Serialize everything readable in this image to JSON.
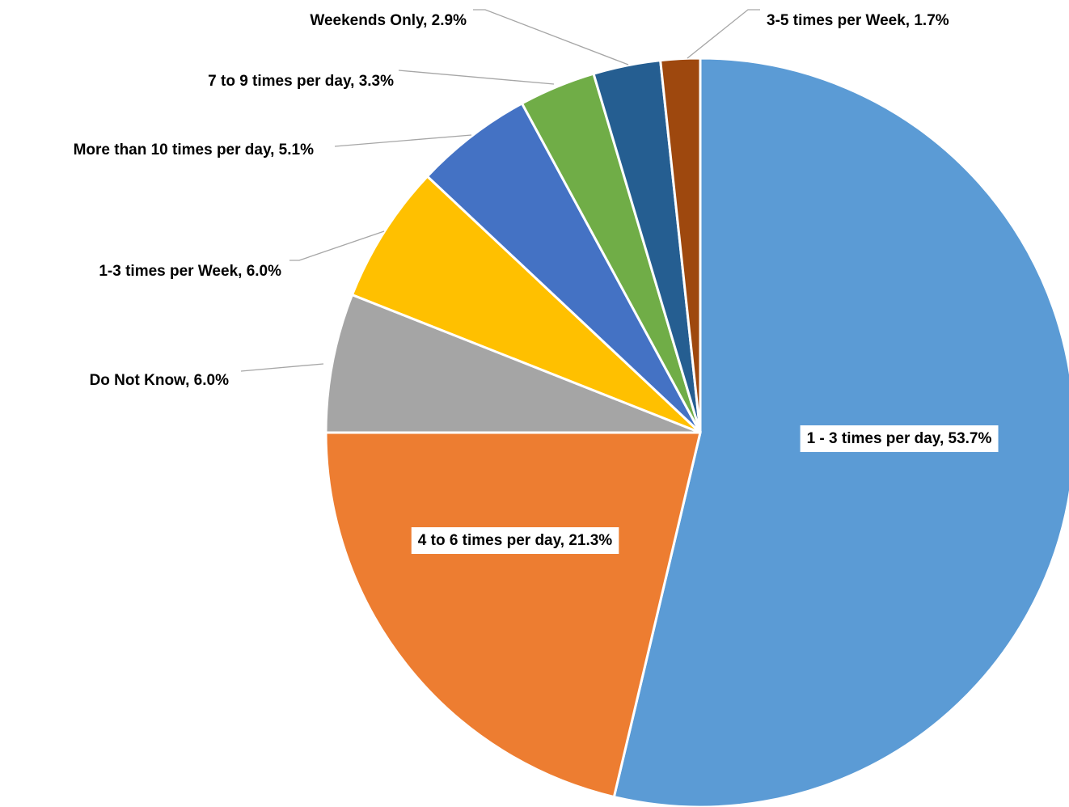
{
  "chart_data": {
    "type": "pie",
    "categories": [
      "1 - 3 times per day",
      "4 to 6 times per day",
      "Do Not Know",
      "1-3 times per Week",
      "More than 10 times per day",
      "7 to 9 times per day",
      "Weekends Only",
      "3-5 times per Week"
    ],
    "values": [
      53.7,
      21.3,
      6.0,
      6.0,
      5.1,
      3.3,
      2.9,
      1.7
    ],
    "value_labels": [
      "1 - 3 times per day, 53.7%",
      "4 to 6 times per day, 21.3%",
      "Do Not Know, 6.0%",
      "1-3 times per Week, 6.0%",
      "More than 10 times per day, 5.1%",
      "7 to 9 times per day, 3.3%",
      "Weekends Only, 2.9%",
      "3-5 times per Week, 1.7%"
    ],
    "colors": [
      "#5b9bd5",
      "#ed7d31",
      "#a5a5a5",
      "#ffc000",
      "#4472c4",
      "#70ad47",
      "#255e91",
      "#9e480e"
    ]
  }
}
